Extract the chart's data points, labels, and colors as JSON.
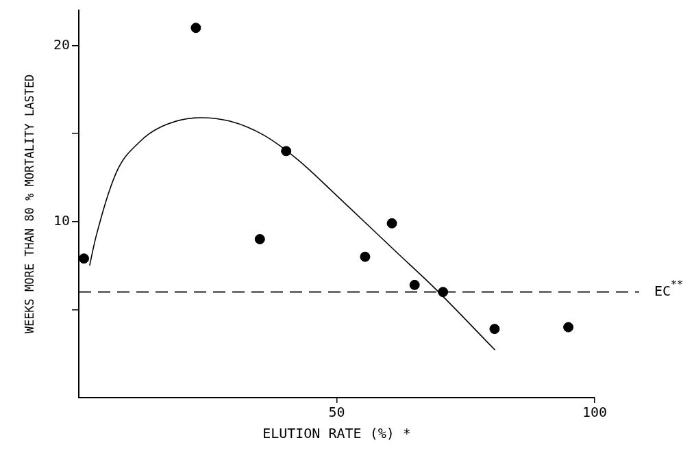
{
  "chart_data": {
    "type": "scatter",
    "xlabel": "ELUTION RATE (%) *",
    "ylabel": "WEEKS MORE THAN 80 % MORTALITY LASTED",
    "xlim": [
      0,
      100
    ],
    "xticks": [
      50,
      100
    ],
    "ylim": [
      0,
      22
    ],
    "yticks": [
      {
        "value": 5,
        "label": null
      },
      10,
      {
        "value": 15,
        "label": null
      },
      20
    ],
    "grid": false,
    "legend": false,
    "series": [
      {
        "type": "scatter",
        "marker": "circle",
        "color": "#000000",
        "x": [
          1,
          22.7,
          40.2,
          35.1,
          55.5,
          60.7,
          65.1,
          70.6,
          80.6,
          94.9
        ],
        "values": [
          7.9,
          21,
          14,
          9,
          8,
          9.9,
          6.4,
          6,
          3.9,
          4
        ]
      },
      {
        "type": "line",
        "color": "#000000",
        "x": [
          2.1,
          3.3,
          7.3,
          11.7,
          16.1,
          23.6,
          29.3,
          35.9,
          42.5,
          49.9,
          61.8,
          68.7,
          80.7
        ],
        "values": [
          7.5,
          9.1,
          12.8,
          14.5,
          15.4,
          15.9,
          15.7,
          14.9,
          13.5,
          11.5,
          8.2,
          6.3,
          2.7
        ]
      }
    ],
    "ref_lines": [
      {
        "axis": "y",
        "value": 6,
        "label": "EC$^{**}$",
        "line_style": "dashed",
        "color": "#000000"
      }
    ]
  }
}
